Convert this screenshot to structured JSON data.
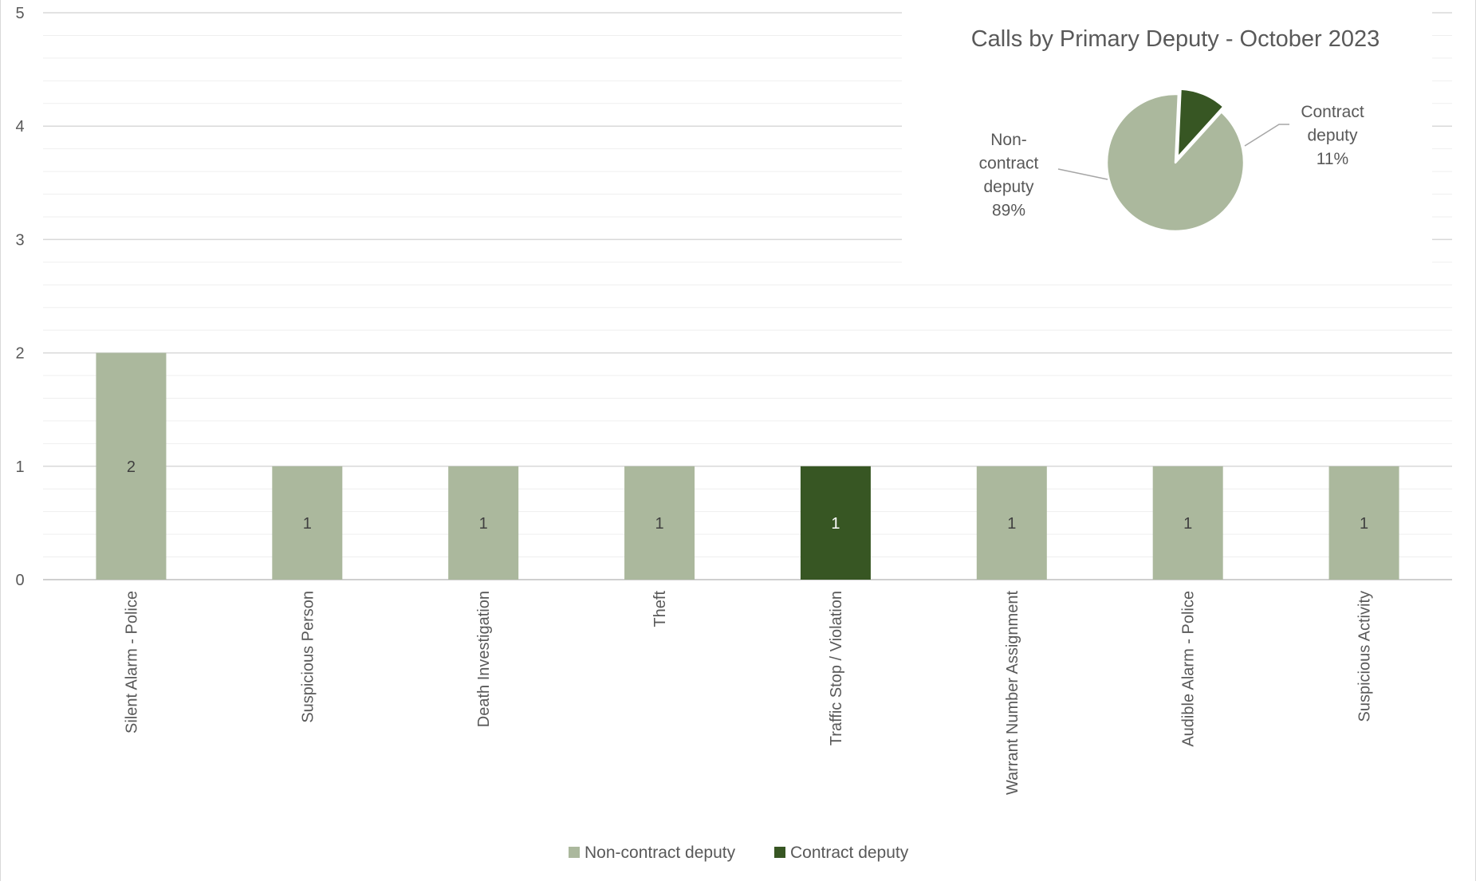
{
  "chart_data": [
    {
      "type": "bar",
      "stacked": true,
      "categories": [
        "Silent Alarm - Police",
        "Suspicious Person",
        "Death Investigation",
        "Theft",
        "Traffic Stop / Violation",
        "Warrant Number Assignment",
        "Audible Alarm - Police",
        "Suspicious Activity"
      ],
      "series": [
        {
          "name": "Non-contract deputy",
          "color": "#abb89d",
          "values": [
            2,
            1,
            1,
            1,
            0,
            1,
            1,
            1
          ]
        },
        {
          "name": "Contract deputy",
          "color": "#375623",
          "values": [
            0,
            0,
            0,
            0,
            1,
            0,
            0,
            0
          ]
        }
      ],
      "ylim": [
        0,
        5
      ],
      "yticks": [
        0,
        1,
        2,
        3,
        4,
        5
      ],
      "minor_gridlines": true,
      "data_labels": true,
      "x_tick_rotation": "vertical",
      "legend": "bottom-center"
    },
    {
      "type": "pie",
      "title": "Calls by Primary Deputy - October 2023",
      "labels": [
        "Non-contract deputy",
        "Contract deputy"
      ],
      "label_lines": [
        [
          "Non-",
          "contract",
          "deputy",
          "89%"
        ],
        [
          "Contract",
          "deputy",
          "11%"
        ]
      ],
      "values": [
        89,
        11
      ],
      "colors": [
        "#abb89d",
        "#375623"
      ],
      "exploded": "Contract deputy",
      "legend": "none",
      "placement": "top-right"
    }
  ]
}
